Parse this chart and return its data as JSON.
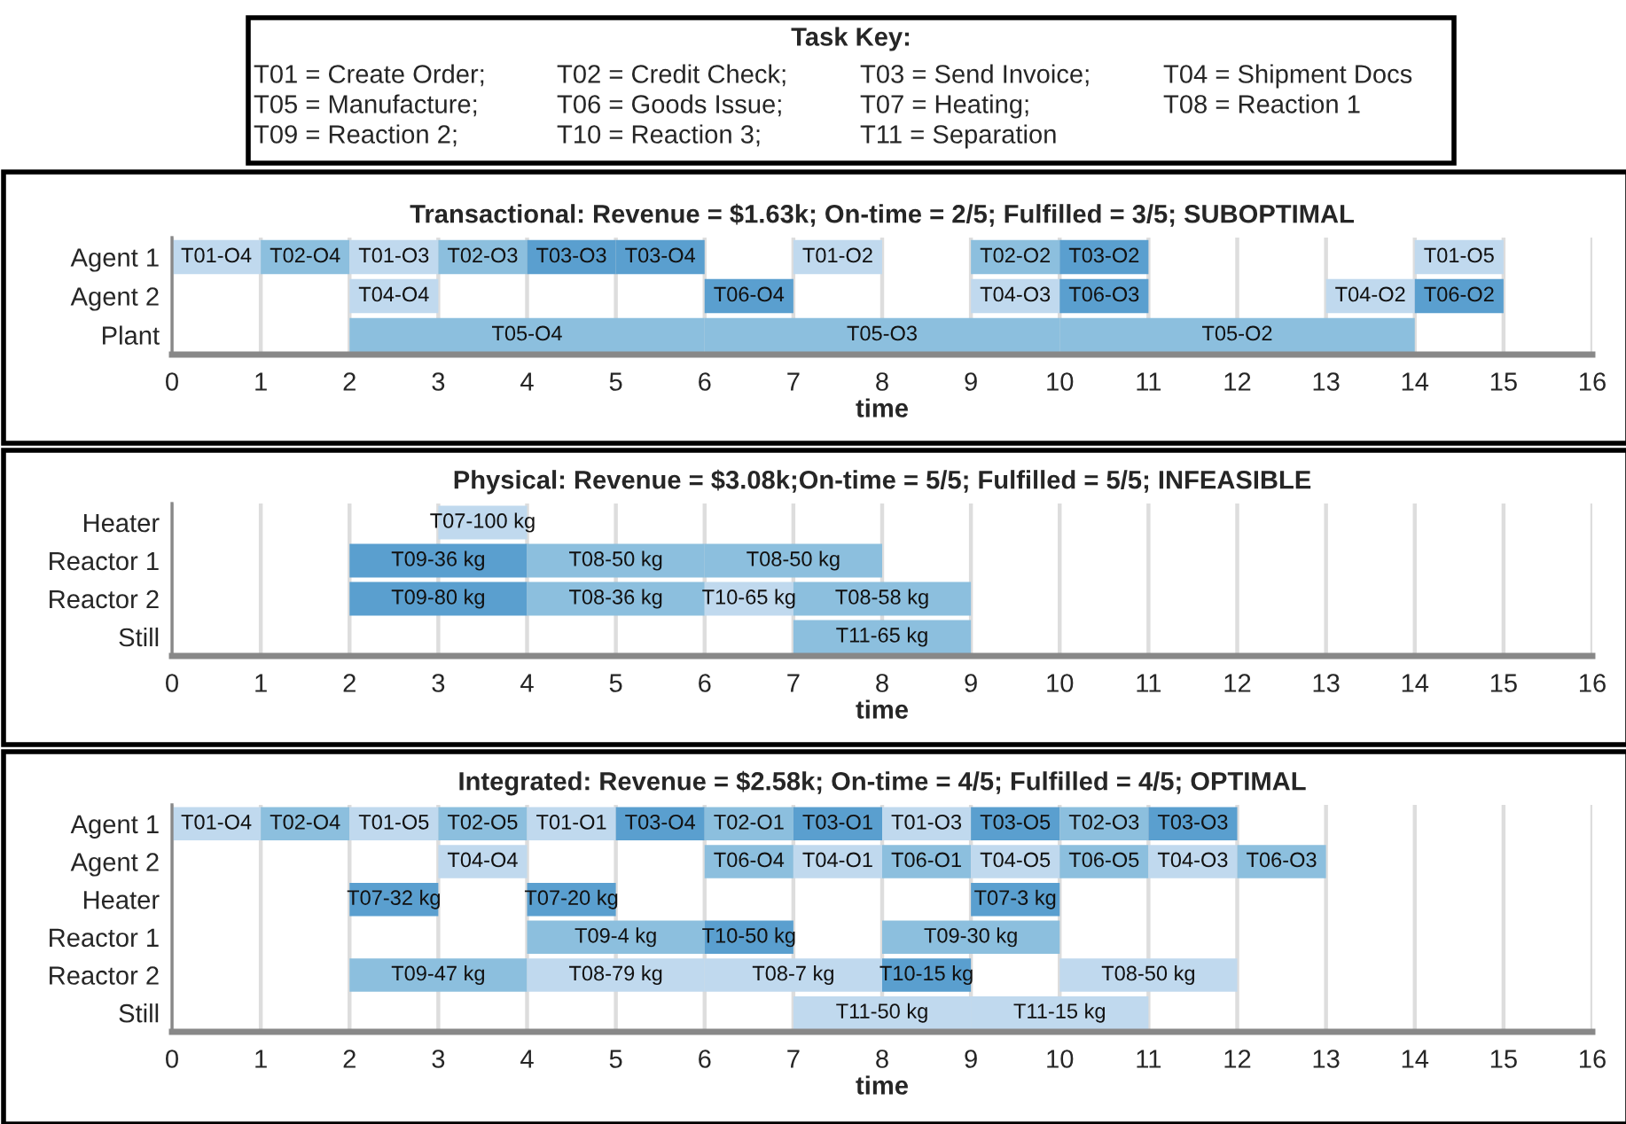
{
  "chart_data": [
    {
      "type": "other",
      "title": "Task Key:",
      "annotations": [
        "T01 = Create Order;",
        "T02 = Credit Check;",
        "T03 = Send Invoice;",
        "T04 = Shipment Docs",
        "T05 = Manufacture;",
        "T06 = Goods Issue;",
        "T07 = Heating;",
        "T08 = Reaction 1",
        "T09 = Reaction 2;",
        "T10 = Reaction 3;",
        "T11 = Separation"
      ]
    },
    {
      "type": "bar",
      "orientation": "horizontal",
      "title": "Transactional: Revenue = $1.63k; On-time = 2/5; Fulfilled = 3/5; SUBOPTIMAL",
      "xlabel": "time",
      "categories": [
        "Agent 1",
        "Agent 2",
        "Plant"
      ],
      "xlim": [
        0,
        16
      ],
      "xticks": [
        0,
        1,
        2,
        3,
        4,
        5,
        6,
        7,
        8,
        9,
        10,
        11,
        12,
        13,
        14,
        15,
        16
      ],
      "grid": "x",
      "legend": false,
      "series": [
        {
          "values": [
            1,
            1,
            4
          ],
          "base": [
            0,
            2,
            2
          ],
          "value_labels": [
            "T01-O4",
            "T04-O4",
            "T05-O4"
          ],
          "colors": [
            "#c0d9ee",
            "#c0d9ee",
            "#8cbfde"
          ]
        },
        {
          "values": [
            1,
            1,
            4
          ],
          "base": [
            1,
            6,
            6
          ],
          "value_labels": [
            "T02-O4",
            "T06-O4",
            "T05-O3"
          ],
          "colors": [
            "#8cbfde",
            "#5a9fcf",
            "#8cbfde"
          ]
        },
        {
          "values": [
            1,
            1,
            4
          ],
          "base": [
            2,
            9,
            10
          ],
          "value_labels": [
            "T01-O3",
            "T04-O3",
            "T05-O2"
          ],
          "colors": [
            "#c0d9ee",
            "#c0d9ee",
            "#8cbfde"
          ]
        },
        {
          "values": [
            1,
            1,
            null
          ],
          "base": [
            3,
            10,
            null
          ],
          "value_labels": [
            "T02-O3",
            "T06-O3",
            null
          ],
          "colors": [
            "#8cbfde",
            "#5a9fcf",
            null
          ]
        },
        {
          "values": [
            1,
            1,
            null
          ],
          "base": [
            4,
            13,
            null
          ],
          "value_labels": [
            "T03-O3",
            "T04-O2",
            null
          ],
          "colors": [
            "#5a9fcf",
            "#c0d9ee",
            null
          ]
        },
        {
          "values": [
            1,
            1,
            null
          ],
          "base": [
            5,
            14,
            null
          ],
          "value_labels": [
            "T03-O4",
            "T06-O2",
            null
          ],
          "colors": [
            "#5a9fcf",
            "#5a9fcf",
            null
          ]
        },
        {
          "values": [
            1,
            null,
            null
          ],
          "base": [
            7,
            null,
            null
          ],
          "value_labels": [
            "T01-O2",
            null,
            null
          ],
          "colors": [
            "#c0d9ee",
            null,
            null
          ]
        },
        {
          "values": [
            1,
            null,
            null
          ],
          "base": [
            9,
            null,
            null
          ],
          "value_labels": [
            "T02-O2",
            null,
            null
          ],
          "colors": [
            "#8cbfde",
            null,
            null
          ]
        },
        {
          "values": [
            1,
            null,
            null
          ],
          "base": [
            10,
            null,
            null
          ],
          "value_labels": [
            "T03-O2",
            null,
            null
          ],
          "colors": [
            "#5a9fcf",
            null,
            null
          ]
        },
        {
          "values": [
            1,
            null,
            null
          ],
          "base": [
            14,
            null,
            null
          ],
          "value_labels": [
            "T01-O5",
            null,
            null
          ],
          "colors": [
            "#c0d9ee",
            null,
            null
          ]
        }
      ]
    },
    {
      "type": "bar",
      "orientation": "horizontal",
      "title": "Physical: Revenue = $3.08k;On-time = 5/5; Fulfilled = 5/5; INFEASIBLE",
      "xlabel": "time",
      "categories": [
        "Heater",
        "Reactor 1",
        "Reactor 2",
        "Still"
      ],
      "xlim": [
        0,
        16
      ],
      "xticks": [
        0,
        1,
        2,
        3,
        4,
        5,
        6,
        7,
        8,
        9,
        10,
        11,
        12,
        13,
        14,
        15,
        16
      ],
      "grid": "x",
      "legend": false,
      "series": [
        {
          "values": [
            1,
            2,
            2,
            2
          ],
          "base": [
            3,
            2,
            2,
            7
          ],
          "value_labels": [
            "T07-100 kg",
            "T09-36 kg",
            "T09-80 kg",
            "T11-65 kg"
          ],
          "colors": [
            "#c0d9ee",
            "#5a9fcf",
            "#5a9fcf",
            "#8cbfde"
          ]
        },
        {
          "values": [
            null,
            2,
            2,
            null
          ],
          "base": [
            null,
            4,
            4,
            null
          ],
          "value_labels": [
            null,
            "T08-50 kg",
            "T08-36 kg",
            null
          ],
          "colors": [
            null,
            "#8cbfde",
            "#8cbfde",
            null
          ]
        },
        {
          "values": [
            null,
            2,
            1,
            null
          ],
          "base": [
            null,
            6,
            6,
            null
          ],
          "value_labels": [
            null,
            "T08-50 kg",
            "T10-65 kg",
            null
          ],
          "colors": [
            null,
            "#8cbfde",
            "#c0d9ee",
            null
          ]
        },
        {
          "values": [
            null,
            null,
            2,
            null
          ],
          "base": [
            null,
            null,
            7,
            null
          ],
          "value_labels": [
            null,
            null,
            "T08-58 kg",
            null
          ],
          "colors": [
            null,
            null,
            "#8cbfde",
            null
          ]
        }
      ]
    },
    {
      "type": "bar",
      "orientation": "horizontal",
      "title": "Integrated: Revenue = $2.58k; On-time = 4/5; Fulfilled = 4/5; OPTIMAL",
      "xlabel": "time",
      "categories": [
        "Agent 1",
        "Agent 2",
        "Heater",
        "Reactor 1",
        "Reactor 2",
        "Still"
      ],
      "xlim": [
        0,
        16
      ],
      "xticks": [
        0,
        1,
        2,
        3,
        4,
        5,
        6,
        7,
        8,
        9,
        10,
        11,
        12,
        13,
        14,
        15,
        16
      ],
      "grid": "x",
      "legend": false,
      "series": [
        {
          "values": [
            1,
            1,
            1,
            2,
            2,
            2
          ],
          "base": [
            0,
            3,
            2,
            4,
            2,
            7
          ],
          "value_labels": [
            "T01-O4",
            "T04-O4",
            "T07-32 kg",
            "T09-4 kg",
            "T09-47 kg",
            "T11-50 kg"
          ],
          "colors": [
            "#c0d9ee",
            "#c0d9ee",
            "#5a9fcf",
            "#8cbfde",
            "#8cbfde",
            "#c0d9ee"
          ]
        },
        {
          "values": [
            1,
            1,
            1,
            1,
            2,
            2
          ],
          "base": [
            1,
            6,
            4,
            6,
            4,
            9
          ],
          "value_labels": [
            "T02-O4",
            "T06-O4",
            "T07-20 kg",
            "T10-50 kg",
            "T08-79 kg",
            "T11-15 kg"
          ],
          "colors": [
            "#8cbfde",
            "#8cbfde",
            "#5a9fcf",
            "#5a9fcf",
            "#c0d9ee",
            "#c0d9ee"
          ]
        },
        {
          "values": [
            1,
            1,
            1,
            2,
            2,
            null
          ],
          "base": [
            2,
            7,
            9,
            8,
            6,
            null
          ],
          "value_labels": [
            "T01-O5",
            "T04-O1",
            "T07-3 kg",
            "T09-30 kg",
            "T08-7 kg",
            null
          ],
          "colors": [
            "#c0d9ee",
            "#c0d9ee",
            "#5a9fcf",
            "#8cbfde",
            "#c0d9ee",
            null
          ]
        },
        {
          "values": [
            1,
            1,
            null,
            null,
            1,
            null
          ],
          "base": [
            3,
            8,
            null,
            null,
            8,
            null
          ],
          "value_labels": [
            "T02-O5",
            "T06-O1",
            null,
            null,
            "T10-15 kg",
            null
          ],
          "colors": [
            "#8cbfde",
            "#8cbfde",
            null,
            null,
            "#5a9fcf",
            null
          ]
        },
        {
          "values": [
            1,
            1,
            null,
            null,
            2,
            null
          ],
          "base": [
            4,
            9,
            null,
            null,
            10,
            null
          ],
          "value_labels": [
            "T01-O1",
            "T04-O5",
            null,
            null,
            "T08-50 kg",
            null
          ],
          "colors": [
            "#c0d9ee",
            "#c0d9ee",
            null,
            null,
            "#c0d9ee",
            null
          ]
        },
        {
          "values": [
            1,
            1,
            null,
            null,
            null,
            null
          ],
          "base": [
            5,
            10,
            null,
            null,
            null,
            null
          ],
          "value_labels": [
            "T03-O4",
            "T06-O5",
            null,
            null,
            null,
            null
          ],
          "colors": [
            "#5a9fcf",
            "#8cbfde",
            null,
            null,
            null,
            null
          ]
        },
        {
          "values": [
            1,
            1,
            null,
            null,
            null,
            null
          ],
          "base": [
            6,
            11,
            null,
            null,
            null,
            null
          ],
          "value_labels": [
            "T02-O1",
            "T04-O3",
            null,
            null,
            null,
            null
          ],
          "colors": [
            "#8cbfde",
            "#c0d9ee",
            null,
            null,
            null,
            null
          ]
        },
        {
          "values": [
            1,
            1,
            null,
            null,
            null,
            null
          ],
          "base": [
            7,
            12,
            null,
            null,
            null,
            null
          ],
          "value_labels": [
            "T03-O1",
            "T06-O3",
            null,
            null,
            null,
            null
          ],
          "colors": [
            "#5a9fcf",
            "#8cbfde",
            null,
            null,
            null,
            null
          ]
        },
        {
          "values": [
            1,
            null,
            null,
            null,
            null,
            null
          ],
          "base": [
            8,
            null,
            null,
            null,
            null,
            null
          ],
          "value_labels": [
            "T01-O3",
            null,
            null,
            null,
            null,
            null
          ],
          "colors": [
            "#c0d9ee",
            null,
            null,
            null,
            null,
            null
          ]
        },
        {
          "values": [
            1,
            null,
            null,
            null,
            null,
            null
          ],
          "base": [
            9,
            null,
            null,
            null,
            null,
            null
          ],
          "value_labels": [
            "T03-O5",
            null,
            null,
            null,
            null,
            null
          ],
          "colors": [
            "#5a9fcf",
            null,
            null,
            null,
            null,
            null
          ]
        },
        {
          "values": [
            1,
            null,
            null,
            null,
            null,
            null
          ],
          "base": [
            10,
            null,
            null,
            null,
            null,
            null
          ],
          "value_labels": [
            "T02-O3",
            null,
            null,
            null,
            null,
            null
          ],
          "colors": [
            "#8cbfde",
            null,
            null,
            null,
            null,
            null
          ]
        },
        {
          "values": [
            1,
            null,
            null,
            null,
            null,
            null
          ],
          "base": [
            11,
            null,
            null,
            null,
            null,
            null
          ],
          "value_labels": [
            "T03-O3",
            null,
            null,
            null,
            null,
            null
          ],
          "colors": [
            "#5a9fcf",
            null,
            null,
            null,
            null,
            null
          ]
        }
      ]
    }
  ]
}
